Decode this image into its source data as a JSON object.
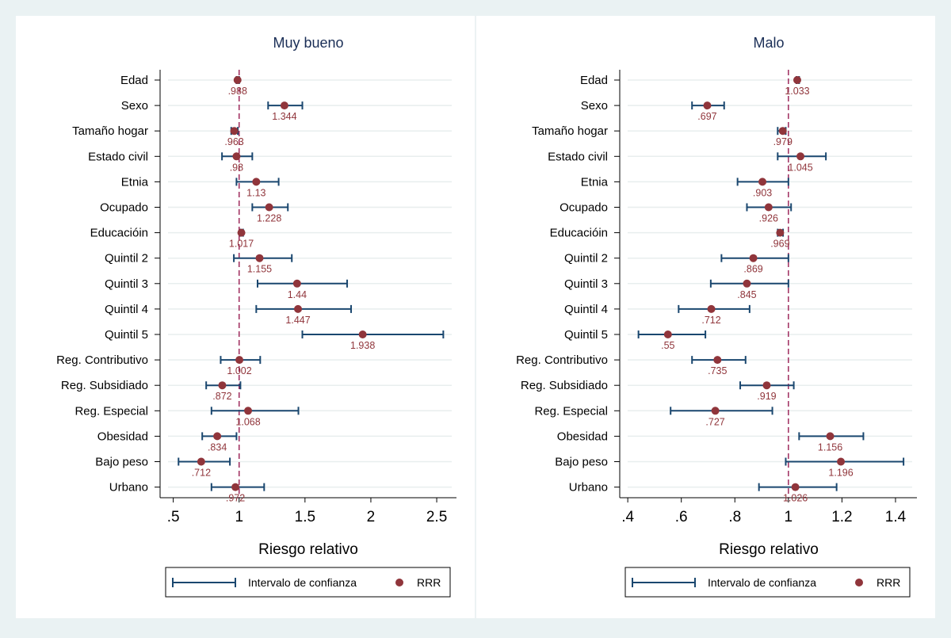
{
  "chart_data": [
    {
      "type": "forest",
      "title": "Muy bueno",
      "xlabel": "Riesgo relativo",
      "xlim": [
        0.4,
        2.65
      ],
      "xticks": [
        0.5,
        1,
        1.5,
        2,
        2.5
      ],
      "xtick_labels": [
        ".5",
        "1",
        "1.5",
        "2",
        "2.5"
      ],
      "reference_line": 1,
      "grid": "horizontal",
      "legend": {
        "position": "bottom",
        "ci_label": "Intervalo de confianza",
        "point_label": "RRR"
      },
      "categories": [
        "Edad",
        "Sexo",
        "Tamaño hogar",
        "Estado civil",
        "Etnia",
        "Ocupado",
        "Educacióin",
        "Quintil 2",
        "Quintil 3",
        "Quintil 4",
        "Quintil 5",
        "Reg. Contributivo",
        "Reg. Subsidiado",
        "Reg. Especial",
        "Obesidad",
        "Bajo peso",
        "Urbano"
      ],
      "values": [
        0.988,
        1.344,
        0.963,
        0.98,
        1.13,
        1.228,
        1.017,
        1.155,
        1.44,
        1.447,
        1.938,
        1.002,
        0.872,
        1.068,
        0.834,
        0.712,
        0.972
      ],
      "value_labels": [
        ".988",
        "1.344",
        ".963",
        ".98",
        "1.13",
        "1.228",
        "1.017",
        "1.155",
        "1.44",
        "1.447",
        "1.938",
        "1.002",
        ".872",
        "1.068",
        ".834",
        ".712",
        ".972"
      ],
      "ci_low": [
        0.98,
        1.22,
        0.94,
        0.87,
        0.98,
        1.1,
        1.01,
        0.96,
        1.14,
        1.13,
        1.48,
        0.86,
        0.75,
        0.79,
        0.72,
        0.54,
        0.79
      ],
      "ci_high": [
        1.0,
        1.48,
        0.99,
        1.1,
        1.3,
        1.37,
        1.03,
        1.4,
        1.82,
        1.85,
        2.55,
        1.16,
        1.01,
        1.45,
        0.98,
        0.93,
        1.19
      ]
    },
    {
      "type": "forest",
      "title": "Malo",
      "xlabel": "Riesgo relativo",
      "xlim": [
        0.37,
        1.48
      ],
      "xticks": [
        0.4,
        0.6,
        0.8,
        1,
        1.2,
        1.4
      ],
      "xtick_labels": [
        ".4",
        ".6",
        ".8",
        "1",
        "1.2",
        "1.4"
      ],
      "reference_line": 1,
      "grid": "horizontal",
      "legend": {
        "position": "bottom",
        "ci_label": "Intervalo de confianza",
        "point_label": "RRR"
      },
      "categories": [
        "Edad",
        "Sexo",
        "Tamaño hogar",
        "Estado civil",
        "Etnia",
        "Ocupado",
        "Educacióin",
        "Quintil 2",
        "Quintil 3",
        "Quintil 4",
        "Quintil 5",
        "Reg. Contributivo",
        "Reg. Subsidiado",
        "Reg. Especial",
        "Obesidad",
        "Bajo peso",
        "Urbano"
      ],
      "values": [
        1.033,
        0.697,
        0.979,
        1.045,
        0.903,
        0.926,
        0.969,
        0.869,
        0.845,
        0.712,
        0.55,
        0.735,
        0.919,
        0.727,
        1.156,
        1.196,
        1.026
      ],
      "value_labels": [
        "1.033",
        ".697",
        ".979",
        "1.045",
        ".903",
        ".926",
        ".969",
        ".869",
        ".845",
        ".712",
        ".55",
        ".735",
        ".919",
        ".727",
        "1.156",
        "1.196",
        "1.026"
      ],
      "ci_low": [
        1.03,
        0.64,
        0.96,
        0.96,
        0.81,
        0.845,
        0.96,
        0.75,
        0.71,
        0.59,
        0.44,
        0.64,
        0.82,
        0.56,
        1.04,
        0.99,
        0.89
      ],
      "ci_high": [
        1.04,
        0.76,
        0.99,
        1.14,
        1.0,
        1.01,
        0.98,
        1.0,
        1.0,
        0.855,
        0.69,
        0.84,
        1.02,
        0.94,
        1.28,
        1.43,
        1.18
      ]
    }
  ],
  "colors": {
    "ci_line": "#1a476f",
    "point": "#90353b",
    "value_label": "#90353b",
    "reference_line": "#9e2a5c",
    "grid": "#e8eeee",
    "axis": "#000000",
    "title": "#1a2e56"
  }
}
